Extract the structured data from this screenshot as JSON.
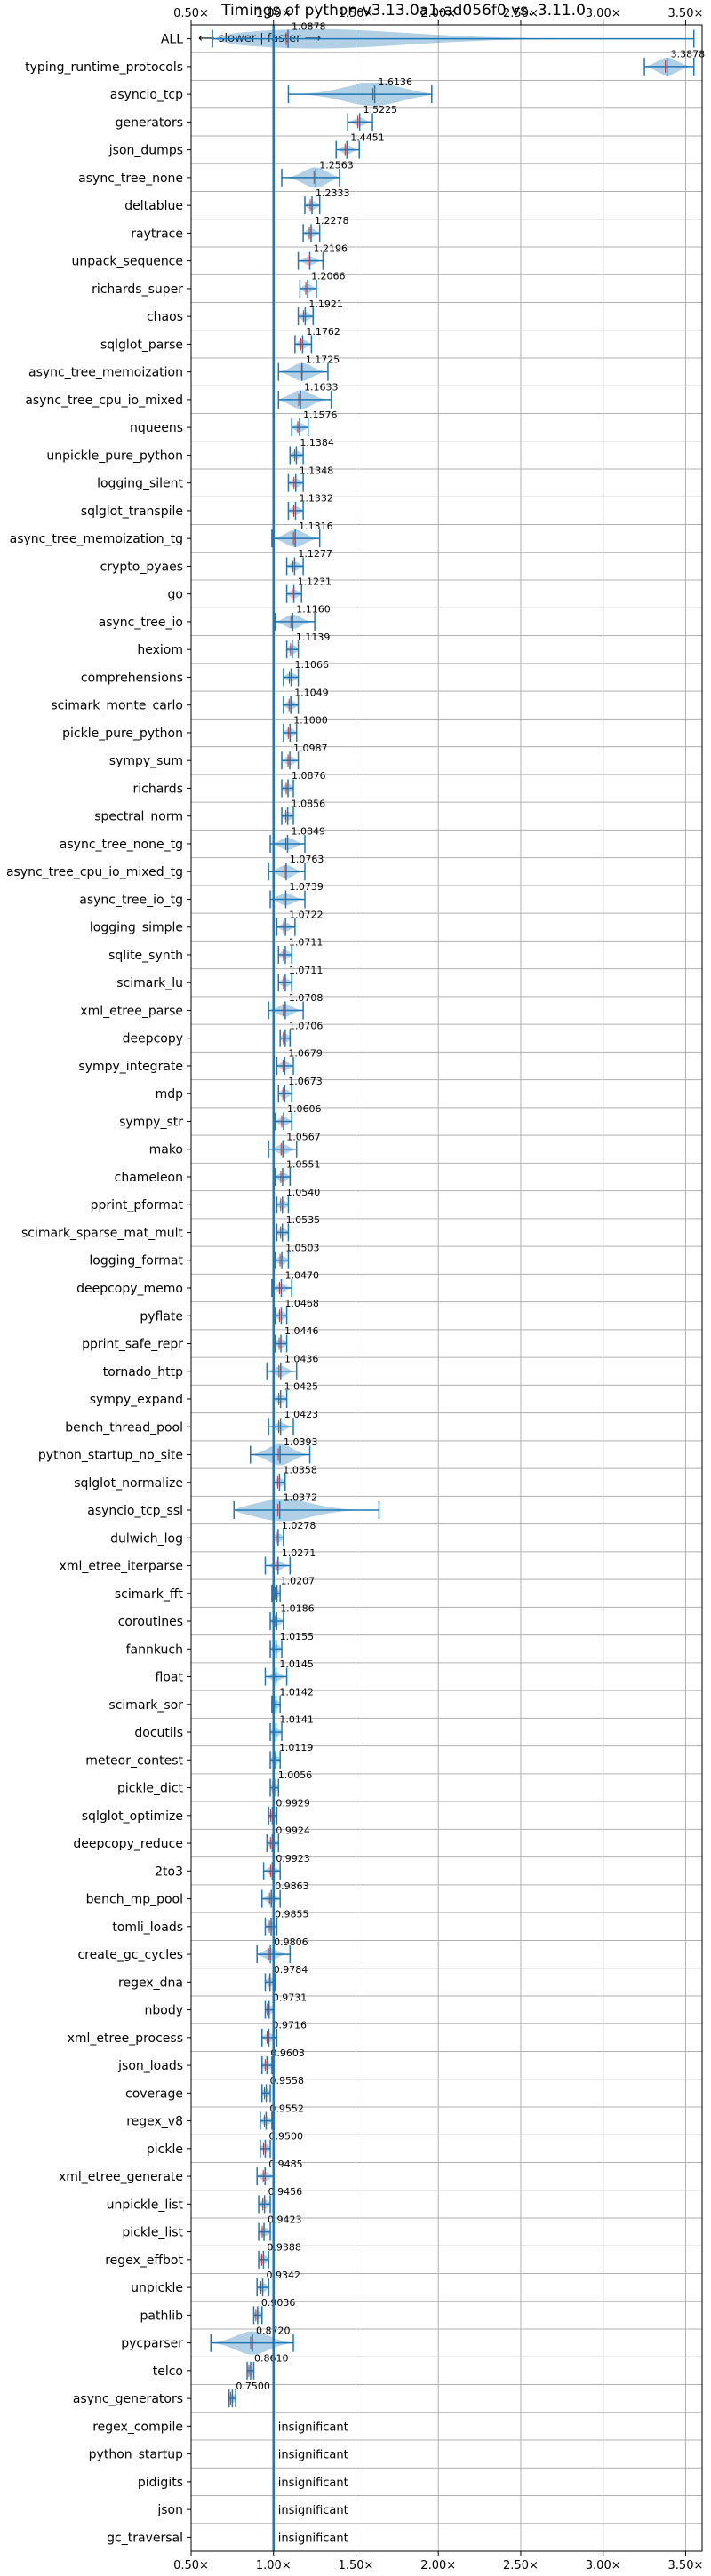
{
  "chart_data": {
    "type": "violin",
    "title": "Timings of python-v3.13.0a1-ad056f0 vs. 3.11.0",
    "direction_label": "⟵ slower | faster ⟶",
    "xlim": [
      0.5,
      3.6
    ],
    "xticks": [
      0.5,
      1.0,
      1.5,
      2.0,
      2.5,
      3.0,
      3.5
    ],
    "xtick_labels": [
      "0.50×",
      "1.00×",
      "1.50×",
      "2.00×",
      "2.50×",
      "3.00×",
      "3.50×"
    ],
    "colors": {
      "violin": "#1f77b4",
      "median": "#d62728",
      "grid": "#b0b0b0"
    },
    "benchmarks": [
      {
        "name": "ALL",
        "value": 1.0878,
        "label": "1.0878",
        "range": [
          0.63,
          3.55
        ]
      },
      {
        "name": "typing_runtime_protocols",
        "value": 3.3878,
        "label": "3.3878",
        "range": [
          3.25,
          3.55
        ]
      },
      {
        "name": "asyncio_tcp",
        "value": 1.6136,
        "label": "1.6136",
        "range": [
          1.09,
          1.96
        ]
      },
      {
        "name": "generators",
        "value": 1.5225,
        "label": "1.5225",
        "range": [
          1.45,
          1.6
        ]
      },
      {
        "name": "json_dumps",
        "value": 1.4451,
        "label": "1.4451",
        "range": [
          1.38,
          1.52
        ]
      },
      {
        "name": "async_tree_none",
        "value": 1.2563,
        "label": "1.2563",
        "range": [
          1.05,
          1.4
        ]
      },
      {
        "name": "deltablue",
        "value": 1.2333,
        "label": "1.2333",
        "range": [
          1.19,
          1.28
        ]
      },
      {
        "name": "raytrace",
        "value": 1.2278,
        "label": "1.2278",
        "range": [
          1.18,
          1.28
        ]
      },
      {
        "name": "unpack_sequence",
        "value": 1.2196,
        "label": "1.2196",
        "range": [
          1.15,
          1.3
        ]
      },
      {
        "name": "richards_super",
        "value": 1.2066,
        "label": "1.2066",
        "range": [
          1.16,
          1.26
        ]
      },
      {
        "name": "chaos",
        "value": 1.1921,
        "label": "1.1921",
        "range": [
          1.15,
          1.24
        ]
      },
      {
        "name": "sqlglot_parse",
        "value": 1.1762,
        "label": "1.1762",
        "range": [
          1.13,
          1.23
        ]
      },
      {
        "name": "async_tree_memoization",
        "value": 1.1725,
        "label": "1.1725",
        "range": [
          1.03,
          1.33
        ]
      },
      {
        "name": "async_tree_cpu_io_mixed",
        "value": 1.1633,
        "label": "1.1633",
        "range": [
          1.03,
          1.35
        ]
      },
      {
        "name": "nqueens",
        "value": 1.1576,
        "label": "1.1576",
        "range": [
          1.11,
          1.21
        ]
      },
      {
        "name": "unpickle_pure_python",
        "value": 1.1384,
        "label": "1.1384",
        "range": [
          1.1,
          1.18
        ]
      },
      {
        "name": "logging_silent",
        "value": 1.1348,
        "label": "1.1348",
        "range": [
          1.09,
          1.18
        ]
      },
      {
        "name": "sqlglot_transpile",
        "value": 1.1332,
        "label": "1.1332",
        "range": [
          1.09,
          1.18
        ]
      },
      {
        "name": "async_tree_memoization_tg",
        "value": 1.1316,
        "label": "1.1316",
        "range": [
          0.99,
          1.28
        ]
      },
      {
        "name": "crypto_pyaes",
        "value": 1.1277,
        "label": "1.1277",
        "range": [
          1.08,
          1.18
        ]
      },
      {
        "name": "go",
        "value": 1.1231,
        "label": "1.1231",
        "range": [
          1.08,
          1.17
        ]
      },
      {
        "name": "async_tree_io",
        "value": 1.116,
        "label": "1.1160",
        "range": [
          1.01,
          1.25
        ]
      },
      {
        "name": "hexiom",
        "value": 1.1139,
        "label": "1.1139",
        "range": [
          1.08,
          1.15
        ]
      },
      {
        "name": "comprehensions",
        "value": 1.1066,
        "label": "1.1066",
        "range": [
          1.06,
          1.15
        ]
      },
      {
        "name": "scimark_monte_carlo",
        "value": 1.1049,
        "label": "1.1049",
        "range": [
          1.06,
          1.15
        ]
      },
      {
        "name": "pickle_pure_python",
        "value": 1.1,
        "label": "1.1000",
        "range": [
          1.06,
          1.14
        ]
      },
      {
        "name": "sympy_sum",
        "value": 1.0987,
        "label": "1.0987",
        "range": [
          1.05,
          1.15
        ]
      },
      {
        "name": "richards",
        "value": 1.0876,
        "label": "1.0876",
        "range": [
          1.05,
          1.12
        ]
      },
      {
        "name": "spectral_norm",
        "value": 1.0856,
        "label": "1.0856",
        "range": [
          1.05,
          1.12
        ]
      },
      {
        "name": "async_tree_none_tg",
        "value": 1.0849,
        "label": "1.0849",
        "range": [
          0.98,
          1.19
        ]
      },
      {
        "name": "async_tree_cpu_io_mixed_tg",
        "value": 1.0763,
        "label": "1.0763",
        "range": [
          0.97,
          1.19
        ]
      },
      {
        "name": "async_tree_io_tg",
        "value": 1.0739,
        "label": "1.0739",
        "range": [
          0.98,
          1.19
        ]
      },
      {
        "name": "logging_simple",
        "value": 1.0722,
        "label": "1.0722",
        "range": [
          1.02,
          1.13
        ]
      },
      {
        "name": "sqlite_synth",
        "value": 1.0711,
        "label": "1.0711",
        "range": [
          1.03,
          1.11
        ]
      },
      {
        "name": "scimark_lu",
        "value": 1.0711,
        "label": "1.0711",
        "range": [
          1.03,
          1.11
        ]
      },
      {
        "name": "xml_etree_parse",
        "value": 1.0708,
        "label": "1.0708",
        "range": [
          0.97,
          1.18
        ]
      },
      {
        "name": "deepcopy",
        "value": 1.0706,
        "label": "1.0706",
        "range": [
          1.04,
          1.1
        ]
      },
      {
        "name": "sympy_integrate",
        "value": 1.0679,
        "label": "1.0679",
        "range": [
          1.02,
          1.12
        ]
      },
      {
        "name": "mdp",
        "value": 1.0673,
        "label": "1.0673",
        "range": [
          1.03,
          1.11
        ]
      },
      {
        "name": "sympy_str",
        "value": 1.0606,
        "label": "1.0606",
        "range": [
          1.01,
          1.11
        ]
      },
      {
        "name": "mako",
        "value": 1.0567,
        "label": "1.0567",
        "range": [
          0.97,
          1.14
        ]
      },
      {
        "name": "chameleon",
        "value": 1.0551,
        "label": "1.0551",
        "range": [
          1.01,
          1.1
        ]
      },
      {
        "name": "pprint_pformat",
        "value": 1.054,
        "label": "1.0540",
        "range": [
          1.02,
          1.09
        ]
      },
      {
        "name": "scimark_sparse_mat_mult",
        "value": 1.0535,
        "label": "1.0535",
        "range": [
          1.02,
          1.09
        ]
      },
      {
        "name": "logging_format",
        "value": 1.0503,
        "label": "1.0503",
        "range": [
          1.01,
          1.09
        ]
      },
      {
        "name": "deepcopy_memo",
        "value": 1.047,
        "label": "1.0470",
        "range": [
          0.99,
          1.11
        ]
      },
      {
        "name": "pyflate",
        "value": 1.0468,
        "label": "1.0468",
        "range": [
          1.01,
          1.08
        ]
      },
      {
        "name": "pprint_safe_repr",
        "value": 1.0446,
        "label": "1.0446",
        "range": [
          1.01,
          1.08
        ]
      },
      {
        "name": "tornado_http",
        "value": 1.0436,
        "label": "1.0436",
        "range": [
          0.96,
          1.14
        ]
      },
      {
        "name": "sympy_expand",
        "value": 1.0425,
        "label": "1.0425",
        "range": [
          1.0,
          1.08
        ]
      },
      {
        "name": "bench_thread_pool",
        "value": 1.0423,
        "label": "1.0423",
        "range": [
          0.97,
          1.12
        ]
      },
      {
        "name": "python_startup_no_site",
        "value": 1.0393,
        "label": "1.0393",
        "range": [
          0.86,
          1.22
        ]
      },
      {
        "name": "sqlglot_normalize",
        "value": 1.0358,
        "label": "1.0358",
        "range": [
          1.0,
          1.07
        ]
      },
      {
        "name": "asyncio_tcp_ssl",
        "value": 1.0372,
        "label": "1.0372",
        "range": [
          0.76,
          1.64
        ]
      },
      {
        "name": "dulwich_log",
        "value": 1.0278,
        "label": "1.0278",
        "range": [
          1.0,
          1.06
        ]
      },
      {
        "name": "xml_etree_iterparse",
        "value": 1.0271,
        "label": "1.0271",
        "range": [
          0.95,
          1.1
        ]
      },
      {
        "name": "scimark_fft",
        "value": 1.0207,
        "label": "1.0207",
        "range": [
          0.99,
          1.04
        ]
      },
      {
        "name": "coroutines",
        "value": 1.0186,
        "label": "1.0186",
        "range": [
          0.98,
          1.06
        ]
      },
      {
        "name": "fannkuch",
        "value": 1.0155,
        "label": "1.0155",
        "range": [
          0.98,
          1.05
        ]
      },
      {
        "name": "float",
        "value": 1.0145,
        "label": "1.0145",
        "range": [
          0.95,
          1.08
        ]
      },
      {
        "name": "scimark_sor",
        "value": 1.0142,
        "label": "1.0142",
        "range": [
          0.99,
          1.04
        ]
      },
      {
        "name": "docutils",
        "value": 1.0141,
        "label": "1.0141",
        "range": [
          0.98,
          1.05
        ]
      },
      {
        "name": "meteor_contest",
        "value": 1.0119,
        "label": "1.0119",
        "range": [
          0.98,
          1.04
        ]
      },
      {
        "name": "pickle_dict",
        "value": 1.0056,
        "label": "1.0056",
        "range": [
          0.98,
          1.03
        ]
      },
      {
        "name": "sqlglot_optimize",
        "value": 0.9929,
        "label": "0.9929",
        "range": [
          0.97,
          1.02
        ]
      },
      {
        "name": "deepcopy_reduce",
        "value": 0.9924,
        "label": "0.9924",
        "range": [
          0.96,
          1.03
        ]
      },
      {
        "name": "2to3",
        "value": 0.9923,
        "label": "0.9923",
        "range": [
          0.94,
          1.04
        ]
      },
      {
        "name": "bench_mp_pool",
        "value": 0.9863,
        "label": "0.9863",
        "range": [
          0.93,
          1.04
        ]
      },
      {
        "name": "tomli_loads",
        "value": 0.9855,
        "label": "0.9855",
        "range": [
          0.95,
          1.02
        ]
      },
      {
        "name": "create_gc_cycles",
        "value": 0.9806,
        "label": "0.9806",
        "range": [
          0.9,
          1.1
        ]
      },
      {
        "name": "regex_dna",
        "value": 0.9784,
        "label": "0.9784",
        "range": [
          0.95,
          1.01
        ]
      },
      {
        "name": "nbody",
        "value": 0.9731,
        "label": "0.9731",
        "range": [
          0.95,
          1.0
        ]
      },
      {
        "name": "xml_etree_process",
        "value": 0.9716,
        "label": "0.9716",
        "range": [
          0.93,
          1.02
        ]
      },
      {
        "name": "json_loads",
        "value": 0.9603,
        "label": "0.9603",
        "range": [
          0.93,
          0.99
        ]
      },
      {
        "name": "coverage",
        "value": 0.9558,
        "label": "0.9558",
        "range": [
          0.93,
          0.98
        ]
      },
      {
        "name": "regex_v8",
        "value": 0.9552,
        "label": "0.9552",
        "range": [
          0.92,
          0.99
        ]
      },
      {
        "name": "pickle",
        "value": 0.95,
        "label": "0.9500",
        "range": [
          0.92,
          0.98
        ]
      },
      {
        "name": "xml_etree_generate",
        "value": 0.9485,
        "label": "0.9485",
        "range": [
          0.9,
          1.0
        ]
      },
      {
        "name": "unpickle_list",
        "value": 0.9456,
        "label": "0.9456",
        "range": [
          0.91,
          0.98
        ]
      },
      {
        "name": "pickle_list",
        "value": 0.9423,
        "label": "0.9423",
        "range": [
          0.91,
          0.98
        ]
      },
      {
        "name": "regex_effbot",
        "value": 0.9388,
        "label": "0.9388",
        "range": [
          0.91,
          0.97
        ]
      },
      {
        "name": "unpickle",
        "value": 0.9342,
        "label": "0.9342",
        "range": [
          0.9,
          0.97
        ]
      },
      {
        "name": "pathlib",
        "value": 0.9036,
        "label": "0.9036",
        "range": [
          0.88,
          0.93
        ]
      },
      {
        "name": "pycparser",
        "value": 0.872,
        "label": "0.8720",
        "range": [
          0.62,
          1.12
        ]
      },
      {
        "name": "telco",
        "value": 0.861,
        "label": "0.8610",
        "range": [
          0.84,
          0.88
        ]
      },
      {
        "name": "async_generators",
        "value": 0.75,
        "label": "0.7500",
        "range": [
          0.73,
          0.77
        ]
      },
      {
        "name": "regex_compile",
        "value": null,
        "label": "insignificant"
      },
      {
        "name": "python_startup",
        "value": null,
        "label": "insignificant"
      },
      {
        "name": "pidigits",
        "value": null,
        "label": "insignificant"
      },
      {
        "name": "json",
        "value": null,
        "label": "insignificant"
      },
      {
        "name": "gc_traversal",
        "value": null,
        "label": "insignificant"
      }
    ]
  }
}
